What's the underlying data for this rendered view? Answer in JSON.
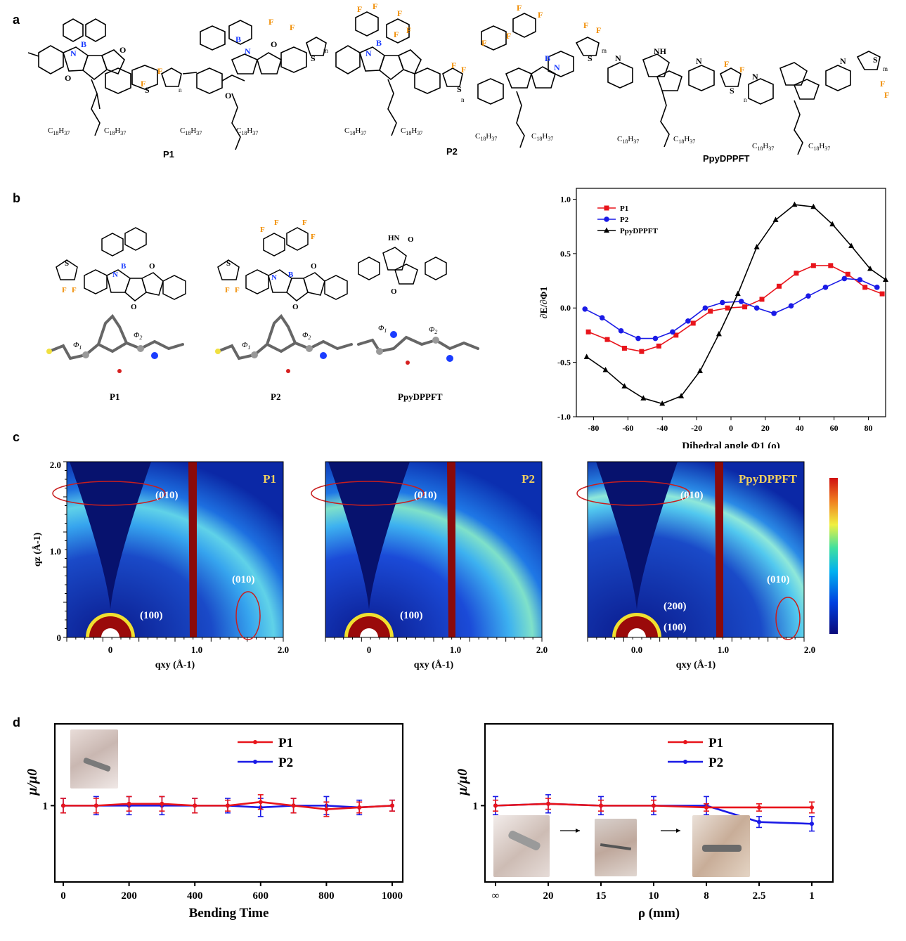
{
  "panels": {
    "a": "a",
    "b": "b",
    "c": "c",
    "d": "d"
  },
  "panel_a": {
    "labels": [
      "P1",
      "P2",
      "PpyDPPFT"
    ],
    "subscripts": {
      "n": "n",
      "m": "m"
    },
    "side_chain": {
      "left": "C",
      "left_sub": "18",
      "left_h": "H",
      "left_hsub": "37"
    },
    "atoms": {
      "B": "B",
      "N": "N",
      "O": "O",
      "S": "S",
      "F": "F",
      "NH": "NH"
    }
  },
  "panel_b": {
    "labels": [
      "P1",
      "P2",
      "PpyDPPFT"
    ],
    "dihedral_labels": [
      "Φ1",
      "Φ2"
    ]
  },
  "colors": {
    "P1": "#e8141b",
    "P2": "#1a1ae6",
    "PpyDPPFT": "#000000",
    "fluorine": "#f08c00",
    "boron_nitrogen": "#1a3cff",
    "giwaxs_annotation": "#f0d060",
    "ellipse": "#c81e1e"
  },
  "chart_data": [
    {
      "type": "line",
      "panel": "b",
      "xlabel": "Dihedral angle Φ1 (o)",
      "ylabel": "∂E/∂Φ1",
      "xlim": [
        -90,
        90
      ],
      "ylim": [
        -1.0,
        1.1
      ],
      "xticks": [
        -80,
        -60,
        -40,
        -20,
        0,
        20,
        40,
        60,
        80
      ],
      "yticks": [
        -1.0,
        -0.5,
        0.0,
        0.5,
        1.0
      ],
      "legend_position": "top-left",
      "series": [
        {
          "name": "P1",
          "marker": "square",
          "x": [
            -83,
            -72,
            -62,
            -52,
            -42,
            -32,
            -22,
            -12,
            -2,
            8,
            18,
            28,
            38,
            48,
            58,
            68,
            78,
            88
          ],
          "y": [
            -0.22,
            -0.29,
            -0.37,
            -0.4,
            -0.35,
            -0.25,
            -0.14,
            -0.03,
            0.0,
            0.01,
            0.08,
            0.2,
            0.32,
            0.39,
            0.39,
            0.31,
            0.19,
            0.13
          ]
        },
        {
          "name": "P2",
          "marker": "circle",
          "x": [
            -85,
            -75,
            -64,
            -54,
            -44,
            -34,
            -25,
            -15,
            -5,
            6,
            15,
            25,
            35,
            45,
            55,
            66,
            75,
            85
          ],
          "y": [
            -0.01,
            -0.09,
            -0.21,
            -0.28,
            -0.28,
            -0.22,
            -0.12,
            0.0,
            0.05,
            0.06,
            0.0,
            -0.05,
            0.02,
            0.11,
            0.19,
            0.27,
            0.26,
            0.19
          ]
        },
        {
          "name": "PpyDPPFT",
          "marker": "triangle",
          "x": [
            -84,
            -73,
            -62,
            -51,
            -40,
            -29,
            -18,
            -7,
            4,
            15,
            26,
            37,
            48,
            59,
            70,
            81,
            90
          ],
          "y": [
            -0.45,
            -0.57,
            -0.72,
            -0.83,
            -0.88,
            -0.81,
            -0.58,
            -0.24,
            0.13,
            0.56,
            0.81,
            0.95,
            0.93,
            0.77,
            0.57,
            0.36,
            0.26
          ]
        }
      ]
    },
    {
      "type": "heatmap",
      "panel": "c",
      "subplots": [
        {
          "title": "P1",
          "xlabel": "qxy (Å-1)",
          "ylabel": "qz (Å-1)",
          "xticks": [
            "0",
            "1.0",
            "2.0"
          ],
          "yticks": [
            "0",
            "1.0",
            "2.0"
          ],
          "annotations": [
            "(010)",
            "(010)",
            "(100)"
          ]
        },
        {
          "title": "P2",
          "xlabel": "qxy (Å-1)",
          "xticks": [
            "0",
            "1.0",
            "2.0"
          ],
          "annotations": [
            "(010)",
            "(100)"
          ]
        },
        {
          "title": "PpyDPPFT",
          "xlabel": "qxy (Å-1)",
          "xticks": [
            "0.0",
            "1.0",
            "2.0"
          ],
          "annotations": [
            "(010)",
            "(010)",
            "(200)",
            "(100)"
          ]
        }
      ]
    },
    {
      "type": "line",
      "panel": "d-left",
      "xlabel": "Bending Time",
      "ylabel": "μ/μ0",
      "xticks": [
        0,
        200,
        400,
        600,
        800,
        1000
      ],
      "yticks": [
        1
      ],
      "xlim": [
        -20,
        1020
      ],
      "ylim": [
        0.58,
        1.45
      ],
      "legend_position": "top-right",
      "series": [
        {
          "name": "P1",
          "x": [
            0,
            100,
            200,
            300,
            400,
            500,
            600,
            700,
            800,
            900,
            1000
          ],
          "y": [
            1.0,
            1.0,
            1.01,
            1.01,
            1.0,
            1.0,
            1.02,
            1.0,
            0.98,
            0.99,
            1.0
          ],
          "err": [
            0.04,
            0.04,
            0.04,
            0.04,
            0.04,
            0.03,
            0.04,
            0.04,
            0.04,
            0.03,
            0.03
          ]
        },
        {
          "name": "P2",
          "x": [
            0,
            100,
            200,
            300,
            400,
            500,
            600,
            700,
            800,
            900,
            1000
          ],
          "y": [
            1.0,
            1.0,
            1.0,
            1.0,
            1.0,
            1.0,
            0.99,
            1.0,
            1.0,
            0.99,
            1.0
          ],
          "err": [
            0.04,
            0.05,
            0.05,
            0.05,
            0.04,
            0.04,
            0.05,
            0.04,
            0.05,
            0.04,
            0.03
          ]
        }
      ]
    },
    {
      "type": "line",
      "panel": "d-right",
      "xlabel": "ρ (mm)",
      "ylabel": "μ/μ0",
      "categories": [
        "∞",
        "20",
        "15",
        "10",
        "8",
        "2.5",
        "1"
      ],
      "yticks": [
        1
      ],
      "ylim": [
        0.58,
        1.45
      ],
      "legend_position": "top-right",
      "series": [
        {
          "name": "P1",
          "values": [
            1.0,
            1.01,
            1.0,
            1.0,
            0.99,
            0.99,
            0.99
          ],
          "err": [
            0.03,
            0.03,
            0.03,
            0.03,
            0.02,
            0.02,
            0.03
          ]
        },
        {
          "name": "P2",
          "values": [
            1.0,
            1.01,
            1.0,
            1.0,
            1.0,
            0.91,
            0.9
          ],
          "err": [
            0.05,
            0.05,
            0.05,
            0.05,
            0.05,
            0.03,
            0.04
          ]
        }
      ]
    }
  ]
}
